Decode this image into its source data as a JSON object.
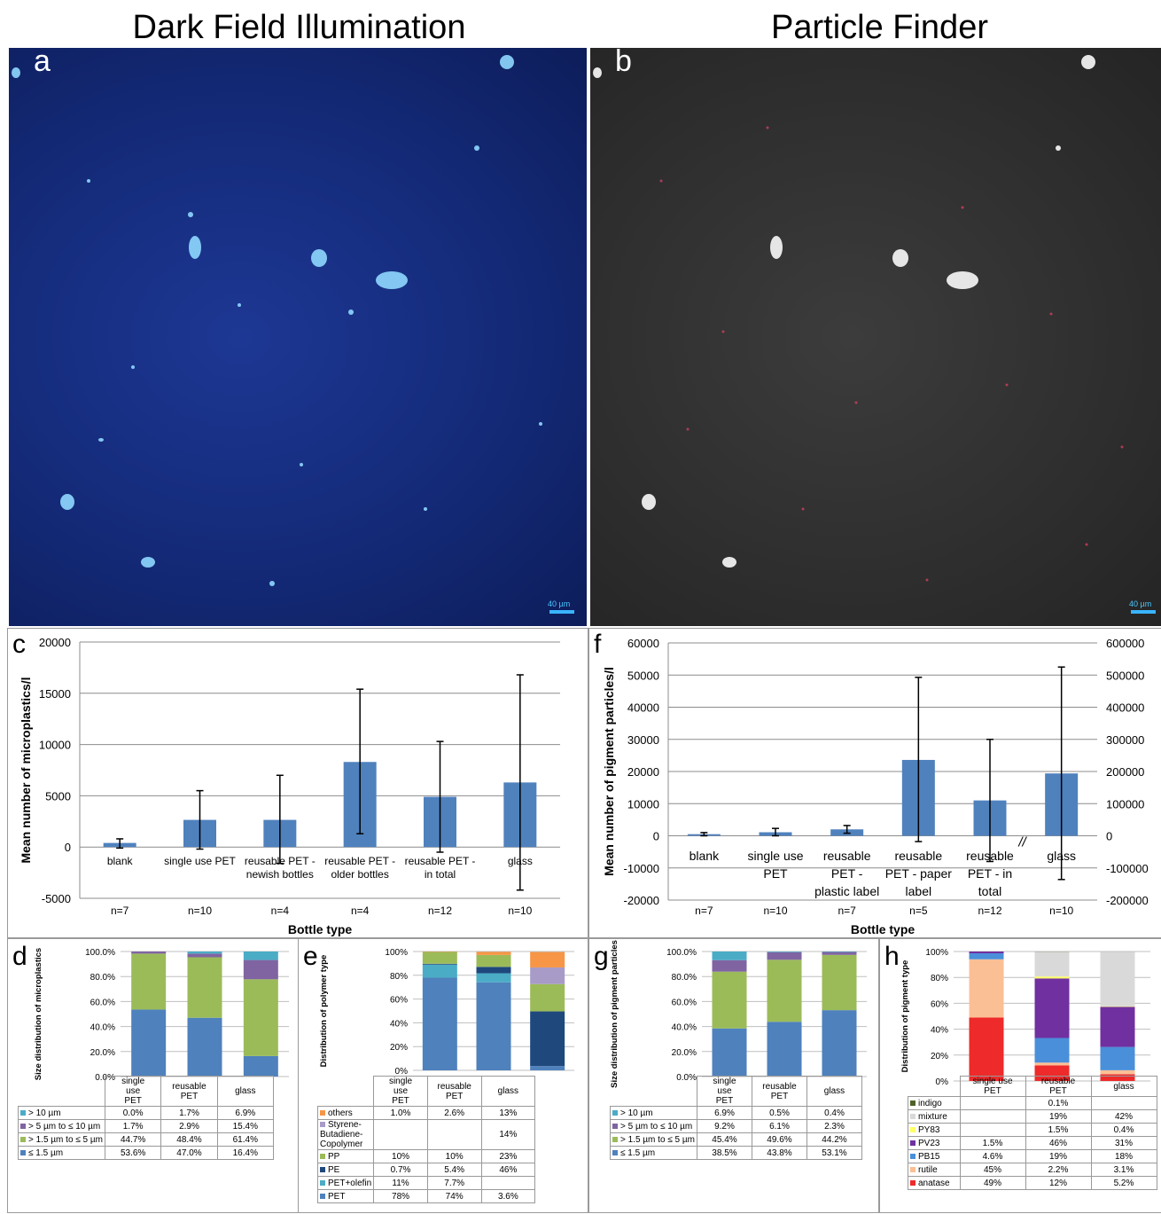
{
  "titles": {
    "left": "Dark Field Illumination",
    "right": "Particle Finder"
  },
  "micro": {
    "a": {
      "letter": "a",
      "scale": "40 µm"
    },
    "b": {
      "letter": "b",
      "scale": "40 µm"
    }
  },
  "chart_data": [
    {
      "id": "c",
      "type": "bar",
      "letter": "c",
      "xlabel": "Bottle type",
      "ylabel": "Mean number of microplastics/l",
      "ylim": [
        -5000,
        20000
      ],
      "ticks": [
        20000,
        15000,
        10000,
        5000,
        0,
        -5000
      ],
      "categories": [
        [
          "blank"
        ],
        [
          "single use PET"
        ],
        [
          "reusable PET -",
          "newish bottles"
        ],
        [
          "reusable PET -",
          "older bottles"
        ],
        [
          "reusable PET -",
          "in total"
        ],
        [
          "glass"
        ]
      ],
      "n": [
        "n=7",
        "n=10",
        "n=4",
        "n=4",
        "n=12",
        "n=10"
      ],
      "values": [
        400,
        2650,
        2650,
        8300,
        4900,
        6300
      ],
      "err_low": [
        -100,
        -200,
        -1600,
        1300,
        -500,
        -4200
      ],
      "err_high": [
        800,
        5500,
        7000,
        15400,
        10300,
        16800
      ],
      "color": "#4f81bd"
    },
    {
      "id": "f",
      "type": "bar",
      "letter": "f",
      "xlabel": "Bottle type",
      "ylabel": "Mean number of pigment particles/l",
      "ylim": [
        -20000,
        60000
      ],
      "ticks": [
        60000,
        50000,
        40000,
        30000,
        20000,
        10000,
        0,
        -10000,
        -20000
      ],
      "ticks_right": [
        "600000",
        "500000",
        "400000",
        "300000",
        "200000",
        "100000",
        "0",
        "-100000",
        "-200000"
      ],
      "break_mark": "//",
      "categories": [
        [
          "blank"
        ],
        [
          "single use",
          "PET"
        ],
        [
          "reusable",
          "PET -",
          "plastic label"
        ],
        [
          "reusable",
          "PET - paper",
          "label"
        ],
        [
          "reusable",
          "PET - in",
          "total"
        ],
        [
          "glass"
        ]
      ],
      "n": [
        "n=7",
        "n=10",
        "n=7",
        "n=5",
        "n=12",
        "n=10"
      ],
      "values": [
        500,
        1100,
        2000,
        23600,
        11000,
        19400
      ],
      "err_low": [
        0,
        0,
        800,
        -1800,
        -8000,
        -13600
      ],
      "err_high": [
        1000,
        2300,
        3200,
        49300,
        30000,
        52500
      ],
      "color": "#4f81bd"
    },
    {
      "id": "d",
      "type": "bar",
      "stacked": true,
      "letter": "d",
      "ylabel": "Size distribution of microplastics",
      "ticks": [
        "100.0%",
        "80.0%",
        "60.0%",
        "40.0%",
        "20.0%",
        "0.0%"
      ],
      "categories": [
        [
          "single",
          "use",
          "PET"
        ],
        [
          "reusable",
          "PET"
        ],
        [
          "glass"
        ]
      ],
      "series": [
        {
          "name": "> 10 µm",
          "color": "#4bacc6",
          "values": [
            0.0,
            1.7,
            6.9
          ],
          "labels": [
            "0.0%",
            "1.7%",
            "6.9%"
          ]
        },
        {
          "name": "> 5 µm to ≤ 10 µm",
          "color": "#8064a2",
          "values": [
            1.7,
            2.9,
            15.4
          ],
          "labels": [
            "1.7%",
            "2.9%",
            "15.4%"
          ]
        },
        {
          "name": "> 1.5 µm to ≤ 5 µm",
          "color": "#9bbb59",
          "values": [
            44.7,
            48.4,
            61.4
          ],
          "labels": [
            "44.7%",
            "48.4%",
            "61.4%"
          ]
        },
        {
          "name": "≤ 1.5 µm",
          "color": "#4f81bd",
          "values": [
            53.6,
            47.0,
            16.4
          ],
          "labels": [
            "53.6%",
            "47.0%",
            "16.4%"
          ]
        }
      ]
    },
    {
      "id": "e",
      "type": "bar",
      "stacked": true,
      "letter": "e",
      "ylabel": "Distribution of polymer type",
      "ticks": [
        "100%",
        "80%",
        "60%",
        "40%",
        "20%",
        "0%"
      ],
      "categories": [
        [
          "single",
          "use",
          "PET"
        ],
        [
          "reusable",
          "PET"
        ],
        [
          "glass"
        ]
      ],
      "series": [
        {
          "name": "others",
          "color": "#f79646",
          "values": [
            1.0,
            2.6,
            13
          ],
          "labels": [
            "1.0%",
            "2.6%",
            "13%"
          ]
        },
        {
          "name": "Styrene-Butadiene-Copolymer",
          "color": "#a89bc8",
          "values": [
            0,
            0,
            14
          ],
          "labels": [
            "",
            "",
            "14%"
          ]
        },
        {
          "name": "PP",
          "color": "#9bbb59",
          "values": [
            10,
            10,
            23
          ],
          "labels": [
            "10%",
            "10%",
            "23%"
          ]
        },
        {
          "name": "PE",
          "color": "#1f497d",
          "values": [
            0.7,
            5.4,
            46
          ],
          "labels": [
            "0.7%",
            "5.4%",
            "46%"
          ]
        },
        {
          "name": "PET+olefin",
          "color": "#4bacc6",
          "values": [
            11,
            7.7,
            0
          ],
          "labels": [
            "11%",
            "7.7%",
            ""
          ]
        },
        {
          "name": "PET",
          "color": "#4f81bd",
          "values": [
            78,
            74,
            3.6
          ],
          "labels": [
            "78%",
            "74%",
            "3.6%"
          ]
        }
      ]
    },
    {
      "id": "g",
      "type": "bar",
      "stacked": true,
      "letter": "g",
      "ylabel": "Size distribution of pigment particles",
      "ticks": [
        "100.0%",
        "80.0%",
        "60.0%",
        "40.0%",
        "20.0%",
        "0.0%"
      ],
      "categories": [
        [
          "single",
          "use",
          "PET"
        ],
        [
          "reusable",
          "PET"
        ],
        [
          "glass"
        ]
      ],
      "series": [
        {
          "name": "> 10 µm",
          "color": "#4bacc6",
          "values": [
            6.9,
            0.5,
            0.4
          ],
          "labels": [
            "6.9%",
            "0.5%",
            "0.4%"
          ]
        },
        {
          "name": "> 5 µm to ≤ 10 µm",
          "color": "#8064a2",
          "values": [
            9.2,
            6.1,
            2.3
          ],
          "labels": [
            "9.2%",
            "6.1%",
            "2.3%"
          ]
        },
        {
          "name": "> 1.5 µm to ≤ 5 µm",
          "color": "#9bbb59",
          "values": [
            45.4,
            49.6,
            44.2
          ],
          "labels": [
            "45.4%",
            "49.6%",
            "44.2%"
          ]
        },
        {
          "name": "≤ 1.5 µm",
          "color": "#4f81bd",
          "values": [
            38.5,
            43.8,
            53.1
          ],
          "labels": [
            "38.5%",
            "43.8%",
            "53.1%"
          ]
        }
      ]
    },
    {
      "id": "h",
      "type": "bar",
      "stacked": true,
      "letter": "h",
      "ylabel": "Distribution of pigment type",
      "ticks": [
        "100%",
        "80%",
        "60%",
        "40%",
        "20%",
        "0%"
      ],
      "categories": [
        [
          "single use",
          "PET"
        ],
        [
          "reusable",
          "PET"
        ],
        [
          "glass"
        ]
      ],
      "series": [
        {
          "name": "indigo",
          "color": "#4f6228",
          "values": [
            0,
            0.1,
            0
          ],
          "labels": [
            "",
            "0.1%",
            ""
          ]
        },
        {
          "name": "mixture",
          "color": "#d9d9d9",
          "values": [
            0,
            19,
            42
          ],
          "labels": [
            "",
            "19%",
            "42%"
          ]
        },
        {
          "name": "PY83",
          "color": "#ffff66",
          "values": [
            0,
            1.5,
            0.4
          ],
          "labels": [
            "",
            "1.5%",
            "0.4%"
          ]
        },
        {
          "name": "PV23",
          "color": "#7030a0",
          "values": [
            1.5,
            46,
            31
          ],
          "labels": [
            "1.5%",
            "46%",
            "31%"
          ]
        },
        {
          "name": "PB15",
          "color": "#4a8fd9",
          "values": [
            4.6,
            19,
            18
          ],
          "labels": [
            "4.6%",
            "19%",
            "18%"
          ]
        },
        {
          "name": "rutile",
          "color": "#fbbf95",
          "values": [
            45,
            2.2,
            3.1
          ],
          "labels": [
            "45%",
            "2.2%",
            "3.1%"
          ]
        },
        {
          "name": "anatase",
          "color": "#ee2a2a",
          "values": [
            49,
            12,
            5.2
          ],
          "labels": [
            "49%",
            "12%",
            "5.2%"
          ]
        }
      ]
    }
  ]
}
